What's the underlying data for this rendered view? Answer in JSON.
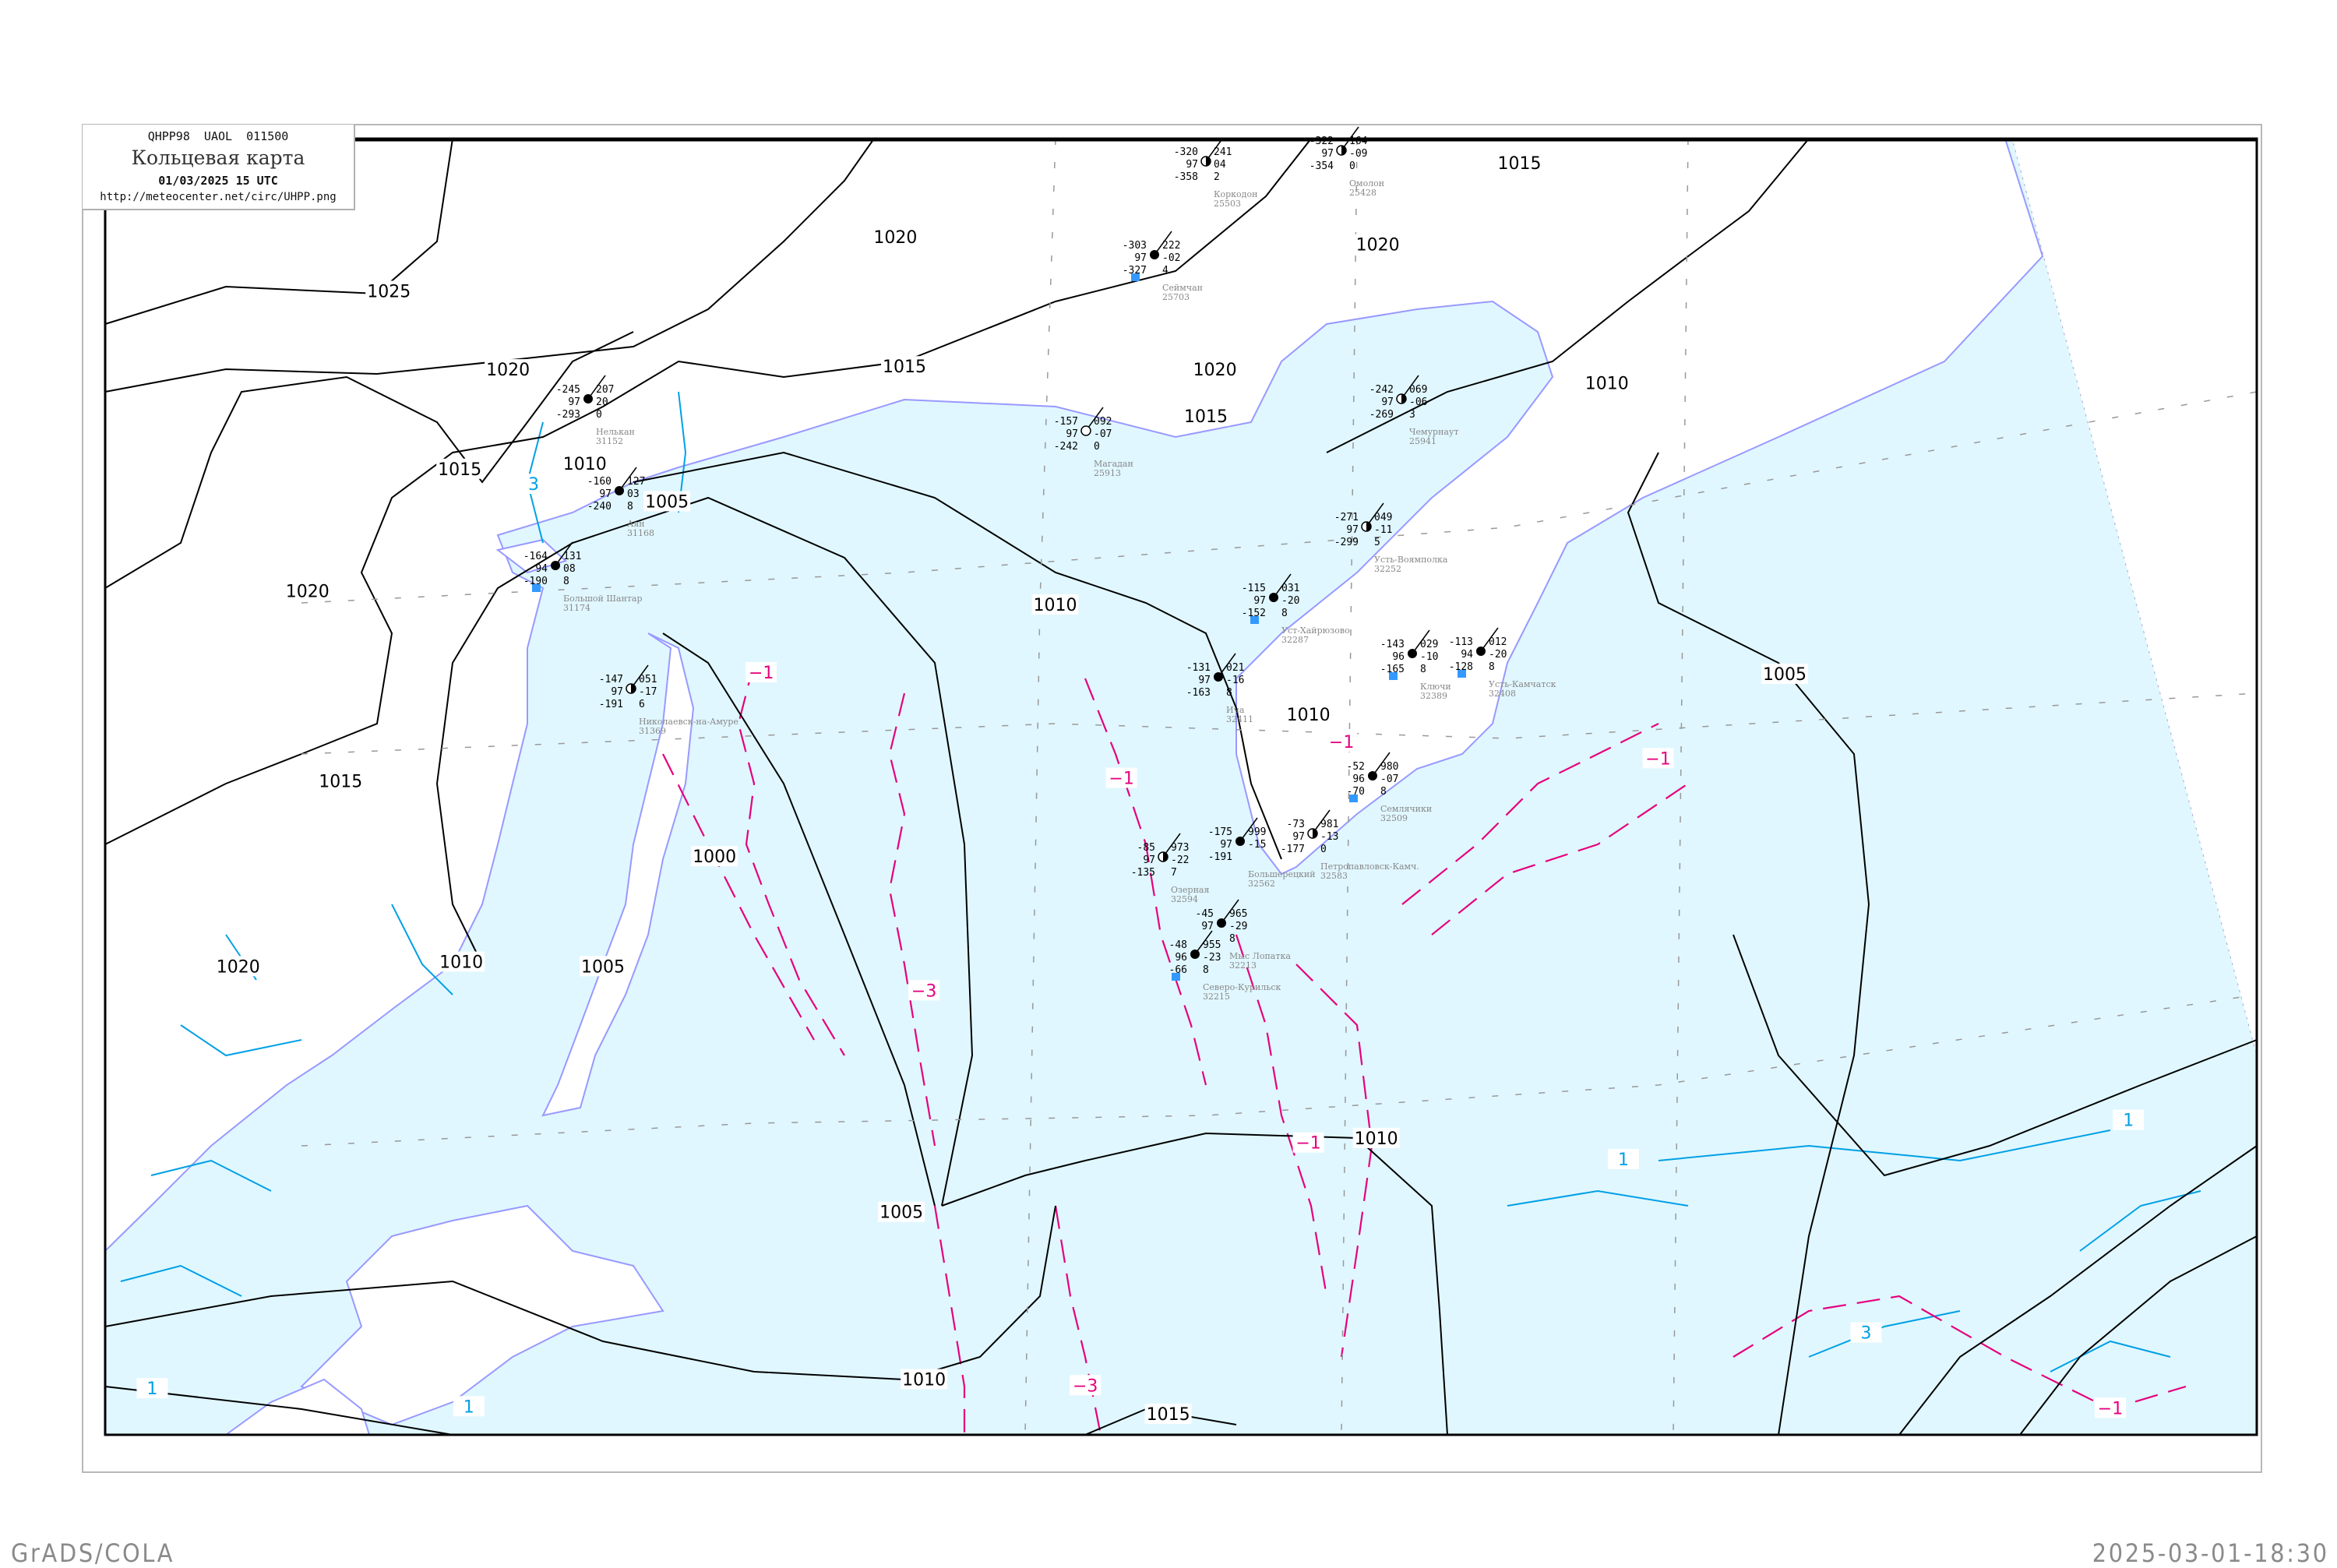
{
  "header": {
    "code_line": "QHPP98  UAOL  011500",
    "title": "Кольцевая карта",
    "datetime": "01/03/2025 15 UTC",
    "url": "http://meteocenter.net/circ/UHPP.png"
  },
  "footer": {
    "left": "GrADS/COLA",
    "right": "2025-03-01-18:30"
  },
  "colors": {
    "sea": "#e0f7ff",
    "coast": "#9999ff",
    "isobar": "#000000",
    "tendency_negative": "#e6007e",
    "tendency_positive": "#00a0e6",
    "snow_marker": "#3399ff"
  },
  "isobar_labels": [
    "1025",
    "1020",
    "1015",
    "1010",
    "1005",
    "1010",
    "1020",
    "1015",
    "1020",
    "1015",
    "1020",
    "1015",
    "1010",
    "1005",
    "1010",
    "1000",
    "1005",
    "1010",
    "1020",
    "1015",
    "1020",
    "1010",
    "1010",
    "1015",
    "1005"
  ],
  "tendency_labels": [
    "-1",
    "-1",
    "-1",
    "-3",
    "-1",
    "-3",
    "-1",
    "-1",
    "1",
    "1",
    "3",
    "1",
    "1",
    "3"
  ],
  "stations": [
    {
      "name": "Коркодон",
      "id": "25503",
      "temp": "-320",
      "vis": "97",
      "dew": "-358",
      "pressure": "241",
      "tendency": "04",
      "extra": "2",
      "cover": "half",
      "snow": false
    },
    {
      "name": "Омолон",
      "id": "25428",
      "temp": "-322",
      "vis": "97",
      "dew": "-354",
      "pressure": "164",
      "tendency": "-09",
      "extra": "0",
      "cover": "half",
      "snow": false
    },
    {
      "name": "Сеймчан",
      "id": "25703",
      "temp": "-303",
      "vis": "97",
      "dew": "-327",
      "pressure": "222",
      "tendency": "-02",
      "extra": "4",
      "cover": "full",
      "snow": true
    },
    {
      "name": "Магадан",
      "id": "25913",
      "temp": "-157",
      "vis": "97",
      "dew": "-242",
      "pressure": "092",
      "tendency": "-07",
      "extra": "0",
      "cover": "clear",
      "snow": false
    },
    {
      "name": "Чемурнаут",
      "id": "25941",
      "temp": "-242",
      "vis": "97",
      "dew": "-269",
      "pressure": "069",
      "tendency": "-06",
      "extra": "3",
      "cover": "half",
      "snow": false
    },
    {
      "name": "Усть-Воямполка",
      "id": "32252",
      "temp": "-271",
      "vis": "97",
      "dew": "-299",
      "pressure": "049",
      "tendency": "-11",
      "extra": "5",
      "cover": "half",
      "snow": false
    },
    {
      "name": "Уст-Хайрюзово",
      "id": "32287",
      "temp": "-115",
      "vis": "97",
      "dew": "-152",
      "pressure": "031",
      "tendency": "-20",
      "extra": "8",
      "cover": "full",
      "snow": true
    },
    {
      "name": "Ключи",
      "id": "32389",
      "temp": "-143",
      "vis": "96",
      "dew": "-165",
      "pressure": "029",
      "tendency": "-10",
      "extra": "8",
      "cover": "full",
      "snow": true
    },
    {
      "name": "Усть-Камчатск",
      "id": "32408",
      "temp": "-113",
      "vis": "94",
      "dew": "-128",
      "pressure": "012",
      "tendency": "-20",
      "extra": "8",
      "cover": "full",
      "snow": true
    },
    {
      "name": "Ича",
      "id": "32411",
      "temp": "-131",
      "vis": "97",
      "dew": "-163",
      "pressure": "021",
      "tendency": "-16",
      "extra": "8",
      "cover": "full",
      "snow": false
    },
    {
      "name": "Семлячики",
      "id": "32509",
      "temp": "-52",
      "vis": "96",
      "dew": "-70",
      "pressure": "980",
      "tendency": "-07",
      "extra": "8",
      "cover": "full",
      "snow": true
    },
    {
      "name": "Петропавловск-Камч.",
      "id": "32583",
      "temp": "-73",
      "vis": "97",
      "dew": "-177",
      "pressure": "981",
      "tendency": "-13",
      "extra": "0",
      "cover": "half",
      "snow": false
    },
    {
      "name": "Большерецкий",
      "id": "32562",
      "temp": "-175",
      "vis": "97",
      "dew": "-191",
      "pressure": "999",
      "tendency": "-15",
      "extra": "",
      "cover": "full",
      "snow": false
    },
    {
      "name": "Северо-Курильск",
      "id": "32215",
      "temp": "-48",
      "vis": "96",
      "dew": "-66",
      "pressure": "955",
      "tendency": "-23",
      "extra": "8",
      "cover": "full",
      "snow": true
    },
    {
      "name": "Мыс Лопатка",
      "id": "32213",
      "temp": "-45",
      "vis": "97",
      "dew": "",
      "pressure": "965",
      "tendency": "-29",
      "extra": "8",
      "cover": "full",
      "snow": false
    },
    {
      "name": "Озерная",
      "id": "32594",
      "temp": "-85",
      "vis": "97",
      "dew": "-135",
      "pressure": "973",
      "tendency": "-22",
      "extra": "7",
      "cover": "half",
      "snow": false
    },
    {
      "name": "Нелькан",
      "id": "31152",
      "temp": "-245",
      "vis": "97",
      "dew": "-293",
      "pressure": "207",
      "tendency": "20",
      "extra": "0",
      "cover": "full",
      "snow": false
    },
    {
      "name": "Аян",
      "id": "31168",
      "temp": "-160",
      "vis": "97",
      "dew": "-240",
      "pressure": "127",
      "tendency": "03",
      "extra": "8",
      "cover": "full",
      "snow": false
    },
    {
      "name": "Большой Шантар",
      "id": "31174",
      "temp": "-164",
      "vis": "94",
      "dew": "-190",
      "pressure": "131",
      "tendency": "08",
      "extra": "8",
      "cover": "full",
      "snow": true
    },
    {
      "name": "Николаевск-на-Амуре",
      "id": "31369",
      "temp": "-147",
      "vis": "97",
      "dew": "-191",
      "pressure": "051",
      "tendency": "-17",
      "extra": "6",
      "cover": "half",
      "snow": false
    }
  ]
}
